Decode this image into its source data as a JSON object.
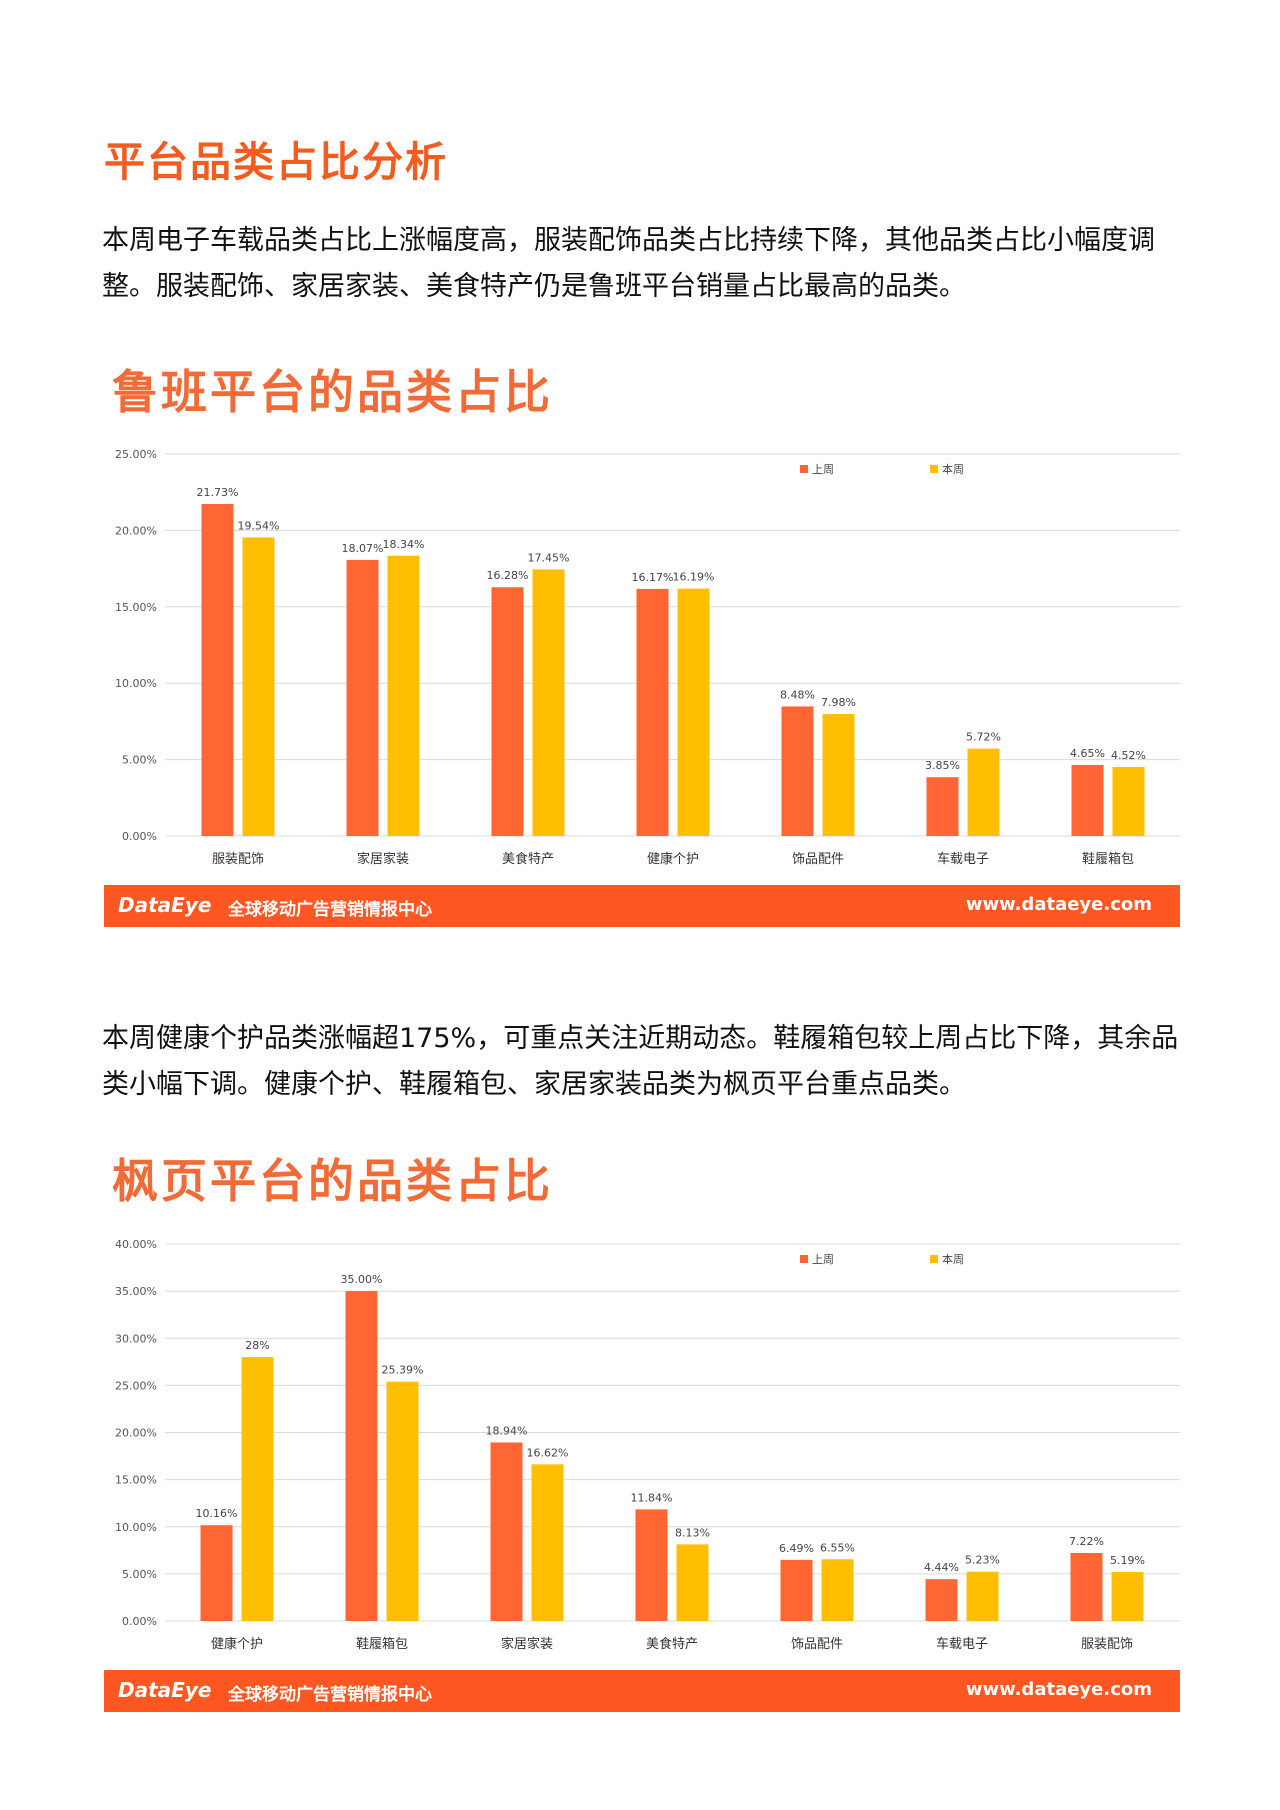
{
  "section_title": "平台品类占比分析",
  "paragraph1": "本周电子车载品类占比上涨幅度高，服装配饰品类占比持续下降，其他品类占比小幅度调整。服装配饰、家居家装、美食特产仍是鲁班平台销量占比最高的品类。",
  "paragraph2": "本周健康个护品类涨幅超175%，可重点关注近期动态。鞋履箱包较上周占比下降，其余品类小幅下调。健康个护、鞋履箱包、家居家装品类为枫页平台重点品类。",
  "banner": {
    "logo": "DataEye",
    "slogan": "全球移动广告营销情报中心",
    "site": "www.dataeye.com"
  },
  "colors": {
    "last_week": "#ff6633",
    "this_week": "#ffbf00",
    "accent": "#f25c1f"
  },
  "chart_data": [
    {
      "type": "bar",
      "title": "鲁班平台的品类占比",
      "categories": [
        "服装配饰",
        "家居家装",
        "美食特产",
        "健康个护",
        "饰品配件",
        "车载电子",
        "鞋履箱包"
      ],
      "series": [
        {
          "name": "上周",
          "values": [
            21.73,
            18.07,
            16.28,
            16.17,
            8.48,
            3.85,
            4.65
          ],
          "labels": [
            "21.73%",
            "18.07%",
            "16.28%",
            "16.17%",
            "8.48%",
            "3.85%",
            "4.65%"
          ]
        },
        {
          "name": "本周",
          "values": [
            19.54,
            18.34,
            17.45,
            16.19,
            7.98,
            5.72,
            4.52
          ],
          "labels": [
            "19.54%",
            "18.34%",
            "17.45%",
            "16.19%",
            "7.98%",
            "5.72%",
            "4.52%"
          ]
        }
      ],
      "ylim": [
        0,
        25
      ],
      "yticks": [
        "0.00%",
        "5.00%",
        "10.00%",
        "15.00%",
        "20.00%",
        "25.00%"
      ],
      "legend": "top-right",
      "grid": true
    },
    {
      "type": "bar",
      "title": "枫页平台的品类占比",
      "categories": [
        "健康个护",
        "鞋履箱包",
        "家居家装",
        "美食特产",
        "饰品配件",
        "车载电子",
        "服装配饰"
      ],
      "series": [
        {
          "name": "上周",
          "values": [
            10.16,
            35.0,
            18.94,
            11.84,
            6.49,
            4.44,
            7.22
          ],
          "labels": [
            "10.16%",
            "35.00%",
            "18.94%",
            "11.84%",
            "6.49%",
            "4.44%",
            "7.22%"
          ]
        },
        {
          "name": "本周",
          "values": [
            28,
            25.39,
            16.62,
            8.13,
            6.55,
            5.23,
            5.19
          ],
          "labels": [
            "28%",
            "25.39%",
            "16.62%",
            "8.13%",
            "6.55%",
            "5.23%",
            "5.19%"
          ]
        }
      ],
      "ylim": [
        0,
        40
      ],
      "yticks": [
        "0.00%",
        "5.00%",
        "10.00%",
        "15.00%",
        "20.00%",
        "25.00%",
        "30.00%",
        "35.00%",
        "40.00%"
      ],
      "legend": "top-right",
      "grid": true
    }
  ]
}
